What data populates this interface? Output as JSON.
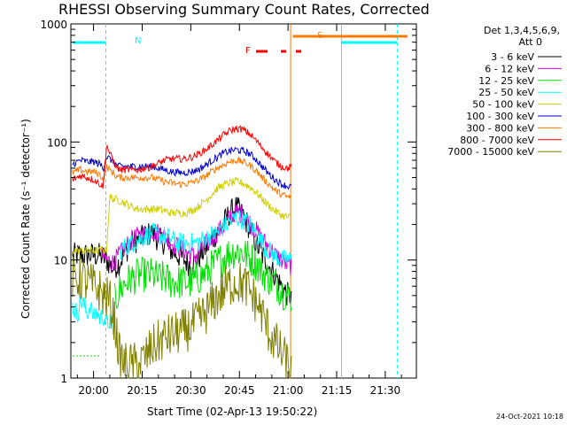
{
  "chart_data": {
    "type": "line",
    "title": "RHESSI Observing Summary Count Rates, Corrected",
    "xlabel": "Start Time (02-Apr-13 19:50:22)",
    "ylabel": "Corrected Count Rate (s⁻¹ detector⁻¹)",
    "yscale": "log",
    "ylim": [
      1,
      1000
    ],
    "xlim_minutes": [
      -7.0,
      99.6
    ],
    "x_ticks": [
      {
        "t": 0,
        "label": "20:00"
      },
      {
        "t": 15,
        "label": "20:15"
      },
      {
        "t": 30,
        "label": "20:30"
      },
      {
        "t": 45,
        "label": "20:45"
      },
      {
        "t": 60,
        "label": "21:00"
      },
      {
        "t": 75,
        "label": "21:15"
      },
      {
        "t": 90,
        "label": "21:30"
      }
    ],
    "y_ticks": [
      {
        "v": 1,
        "label": "1"
      },
      {
        "v": 10,
        "label": "10"
      },
      {
        "v": 100,
        "label": "100"
      },
      {
        "v": 1000,
        "label": "1000"
      }
    ],
    "legend_header": [
      "Det 1,3,4,5,6,9,",
      "Att 0"
    ],
    "series": [
      {
        "name": "3 - 6 keV",
        "color": "#000000",
        "x": [
          -6.5,
          -4,
          -2,
          0,
          2,
          4,
          6,
          8,
          10,
          12,
          14,
          16,
          18,
          20,
          22,
          24,
          26,
          28,
          30,
          32,
          34,
          36,
          38,
          40,
          42,
          44,
          46,
          48,
          50,
          52,
          54,
          56,
          58,
          60,
          61
        ],
        "y": [
          11,
          11,
          11,
          11,
          11,
          10,
          8.5,
          9.5,
          12,
          14,
          15,
          16,
          17,
          15,
          14,
          12,
          11,
          10,
          9,
          10,
          12,
          14,
          17,
          20,
          25,
          28,
          24,
          19,
          14,
          11,
          9,
          7.5,
          6,
          5,
          5
        ]
      },
      {
        "name": "6 - 12 keV",
        "color": "#e000e0",
        "x": [
          2.5,
          4,
          6,
          8,
          10,
          12,
          14,
          16,
          18,
          20,
          22,
          24,
          26,
          28,
          30,
          32,
          34,
          36,
          38,
          40,
          42,
          44,
          46,
          48,
          50,
          52,
          54,
          56,
          58,
          60,
          61
        ],
        "y": [
          11,
          10,
          9.5,
          11,
          13,
          15,
          16,
          17,
          18,
          17,
          16,
          14,
          13,
          12,
          11,
          11,
          13,
          15,
          17,
          19,
          23,
          26,
          24,
          21,
          18,
          15,
          13,
          11,
          10,
          9,
          9
        ]
      },
      {
        "name": "12 - 25 keV",
        "color": "#00e000",
        "x": [
          6.5,
          8,
          10,
          12,
          14,
          16,
          18,
          20,
          22,
          24,
          26,
          28,
          30,
          32,
          34,
          36,
          38,
          40,
          42,
          44,
          46,
          48,
          50,
          52,
          54,
          56,
          58,
          60,
          61
        ],
        "y": [
          4.5,
          5.5,
          6.5,
          7,
          7.5,
          7.5,
          7.5,
          7,
          7,
          6.5,
          6.5,
          6.5,
          6.5,
          7,
          7.5,
          8.5,
          9.5,
          10.5,
          11.5,
          12,
          11.5,
          10.5,
          9.5,
          8,
          7,
          6.5,
          5.5,
          5,
          5
        ]
      },
      {
        "name": "25 - 50 keV",
        "color": "#00ffff",
        "x": [
          -6.5,
          -5,
          -4,
          -3,
          -2,
          -1,
          0,
          1,
          2,
          3,
          4,
          5,
          6,
          6.5
        ],
        "y": [
          4,
          3.5,
          4.5,
          4.2,
          3.5,
          4.2,
          3.2,
          3.6,
          3.2,
          3.4,
          2.8,
          3.1,
          2.6,
          2.7
        ]
      },
      {
        "name": "25 - 50 keV",
        "color": "#00ffff",
        "x": [
          8,
          10,
          12,
          14,
          16,
          18,
          20,
          22,
          24,
          26,
          28,
          30,
          32,
          34,
          36,
          38,
          40,
          42,
          44,
          46,
          48,
          50,
          52,
          54,
          56,
          58,
          60,
          61
        ],
        "y": [
          12,
          13,
          14,
          15,
          16,
          17,
          16,
          16,
          15,
          14,
          14,
          14,
          14,
          15,
          16,
          17,
          19,
          21,
          23,
          22,
          20,
          17,
          14,
          12,
          11,
          10,
          10,
          10
        ]
      },
      {
        "name": "50 - 100 keV",
        "color": "#d0d000",
        "x": [
          -6.5,
          -4,
          -2,
          0,
          2,
          4,
          5,
          6,
          8,
          10,
          12,
          14,
          16,
          18,
          20,
          22,
          24,
          26,
          28,
          30,
          32,
          34,
          36,
          38,
          40,
          42,
          44,
          46,
          48,
          50,
          52,
          54,
          56,
          58,
          60,
          61
        ],
        "y": [
          12,
          12,
          12,
          12,
          12,
          12,
          34,
          33,
          32,
          30,
          28,
          27,
          27,
          27,
          27,
          26,
          25,
          25,
          25,
          26,
          28,
          31,
          35,
          40,
          43,
          45,
          46,
          45,
          42,
          38,
          33,
          29,
          26,
          24,
          23,
          23
        ]
      },
      {
        "name": "100 - 300 keV",
        "color": "#0000d0",
        "x": [
          -6.5,
          -5,
          -4,
          -2,
          0,
          2,
          3,
          4,
          5,
          6,
          7,
          8,
          10,
          12,
          14,
          16,
          18,
          20,
          22,
          24,
          26,
          28,
          30,
          32,
          34,
          36,
          38,
          40,
          42,
          44,
          46,
          48,
          50,
          52,
          54,
          56,
          58,
          60,
          61
        ],
        "y": [
          65,
          68,
          70,
          68,
          68,
          65,
          60,
          75,
          72,
          68,
          64,
          62,
          62,
          62,
          62,
          62,
          62,
          60,
          58,
          56,
          55,
          55,
          56,
          58,
          62,
          68,
          74,
          80,
          84,
          86,
          84,
          80,
          72,
          62,
          54,
          48,
          44,
          42,
          42
        ]
      },
      {
        "name": "300 - 800 keV",
        "color": "#ff7a00",
        "x": [
          -6.5,
          -5,
          -4,
          -2,
          0,
          2,
          3,
          4,
          5,
          6,
          7,
          8,
          10,
          12,
          14,
          16,
          18,
          20,
          22,
          24,
          26,
          28,
          30,
          32,
          34,
          36,
          38,
          40,
          42,
          44,
          46,
          48,
          50,
          52,
          54,
          56,
          58,
          60,
          61
        ],
        "y": [
          55,
          57,
          58,
          56,
          56,
          53,
          48,
          62,
          58,
          55,
          51,
          50,
          50,
          50,
          50,
          50,
          50,
          48,
          46,
          45,
          44,
          44,
          45,
          47,
          50,
          55,
          60,
          64,
          68,
          70,
          68,
          64,
          58,
          50,
          44,
          39,
          36,
          34,
          34
        ]
      },
      {
        "name": "800 - 7000 keV",
        "color": "#ff0000",
        "x": [
          -6.5,
          -5,
          -4,
          -2,
          0,
          2,
          3,
          4,
          5,
          6,
          7,
          8,
          10,
          12,
          14,
          16,
          18,
          20,
          22,
          24,
          26,
          28,
          30,
          32,
          34,
          36,
          38,
          40,
          42,
          44,
          46,
          48,
          50,
          52,
          54,
          56,
          58,
          60,
          61
        ],
        "y": [
          48,
          50,
          52,
          50,
          48,
          44,
          42,
          95,
          80,
          70,
          62,
          58,
          58,
          58,
          58,
          60,
          62,
          66,
          70,
          72,
          72,
          72,
          74,
          78,
          84,
          92,
          102,
          114,
          124,
          130,
          128,
          118,
          104,
          90,
          78,
          68,
          62,
          60,
          62
        ]
      },
      {
        "name": "7000 - 15000 keV",
        "color": "#808000",
        "x": [
          -6.5,
          -4,
          -2,
          0,
          2,
          3,
          4,
          5,
          6,
          7,
          8,
          10,
          12,
          14,
          16,
          18,
          20,
          22,
          24,
          26,
          28,
          30,
          32,
          34,
          36,
          38,
          40,
          42,
          44,
          46,
          48,
          50,
          52,
          54,
          56,
          58,
          60,
          61
        ],
        "y": [
          7,
          7,
          6.5,
          6,
          5.5,
          5,
          4.8,
          4.5,
          3.5,
          2.5,
          1.5,
          1.3,
          1.3,
          1.3,
          1.5,
          1.8,
          2.0,
          2.2,
          2.3,
          2.4,
          2.5,
          2.7,
          3.0,
          3.4,
          4.0,
          4.8,
          5.5,
          6.2,
          6.5,
          6.3,
          5.5,
          4.5,
          3.5,
          2.5,
          2.0,
          1.6,
          1.3,
          1.2
        ]
      }
    ],
    "annotations": [
      {
        "text": "N",
        "color": "#00ffff"
      },
      {
        "text": "S",
        "color": "#ff7a00"
      },
      {
        "text": "F",
        "color": "#ff0000"
      }
    ],
    "timestamp": "24-Oct-2021 10:18"
  }
}
